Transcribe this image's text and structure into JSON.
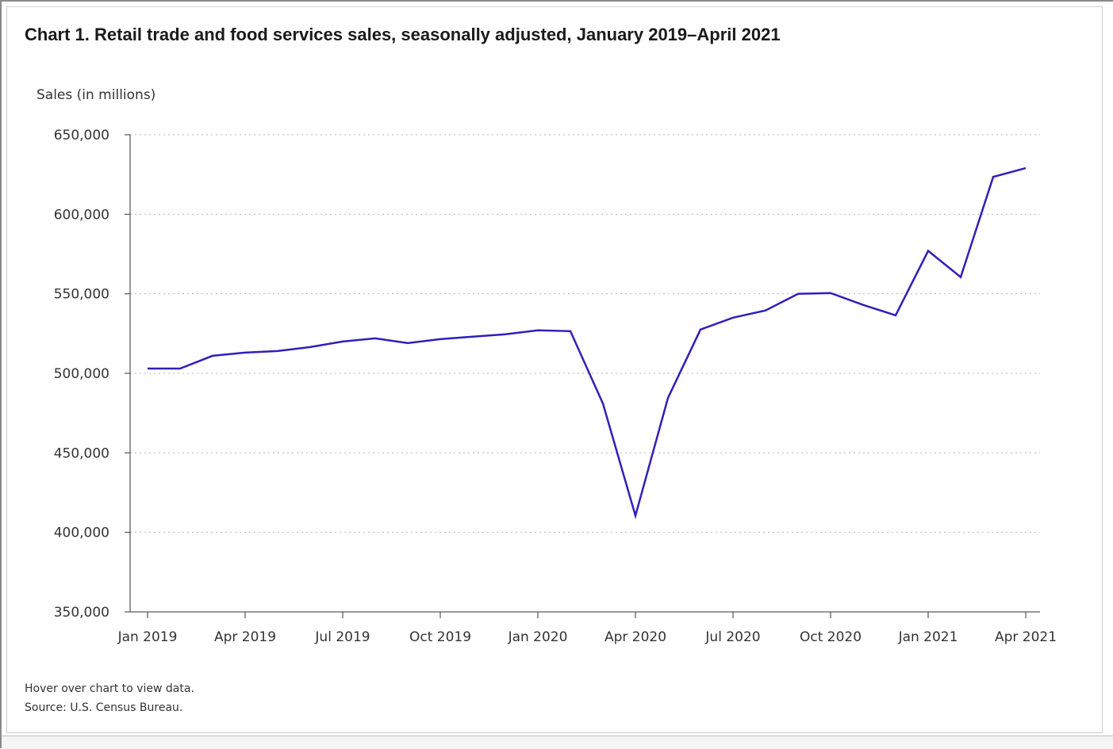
{
  "chart_data": {
    "type": "line",
    "title": "Chart 1. Retail trade and food services sales, seasonally adjusted, January 2019–April 2021",
    "ylabel": "Sales (in millions)",
    "xlabel": "",
    "ylim": [
      350000,
      650000
    ],
    "y_ticks": [
      350000,
      400000,
      450000,
      500000,
      550000,
      600000,
      650000
    ],
    "y_tick_labels": [
      "350,000",
      "400,000",
      "450,000",
      "500,000",
      "550,000",
      "600,000",
      "650,000"
    ],
    "x_tick_indices": [
      0,
      3,
      6,
      9,
      12,
      15,
      18,
      21,
      24,
      27
    ],
    "x_tick_labels": [
      "Jan 2019",
      "Apr 2019",
      "Jul 2019",
      "Oct 2019",
      "Jan 2020",
      "Apr 2020",
      "Jul 2020",
      "Oct 2020",
      "Jan 2021",
      "Apr 2021"
    ],
    "grid": "horizontal dotted",
    "categories": [
      "Jan 2019",
      "Feb 2019",
      "Mar 2019",
      "Apr 2019",
      "May 2019",
      "Jun 2019",
      "Jul 2019",
      "Aug 2019",
      "Sep 2019",
      "Oct 2019",
      "Nov 2019",
      "Dec 2019",
      "Jan 2020",
      "Feb 2020",
      "Mar 2020",
      "Apr 2020",
      "May 2020",
      "Jun 2020",
      "Jul 2020",
      "Aug 2020",
      "Sep 2020",
      "Oct 2020",
      "Nov 2020",
      "Dec 2020",
      "Jan 2021",
      "Feb 2021",
      "Mar 2021",
      "Apr 2021"
    ],
    "series": [
      {
        "color": "#3020b8",
        "values": [
          503000,
          503000,
          511000,
          513000,
          514000,
          516500,
          520000,
          522000,
          519000,
          521500,
          523000,
          524500,
          527000,
          526500,
          481000,
          410500,
          484500,
          527500,
          535000,
          539500,
          550000,
          550500,
          543000,
          536500,
          577000,
          560500,
          623500,
          629000
        ]
      }
    ]
  },
  "footer": {
    "hover_note": "Hover over chart to view data.",
    "source": "Source: U.S. Census Bureau."
  }
}
